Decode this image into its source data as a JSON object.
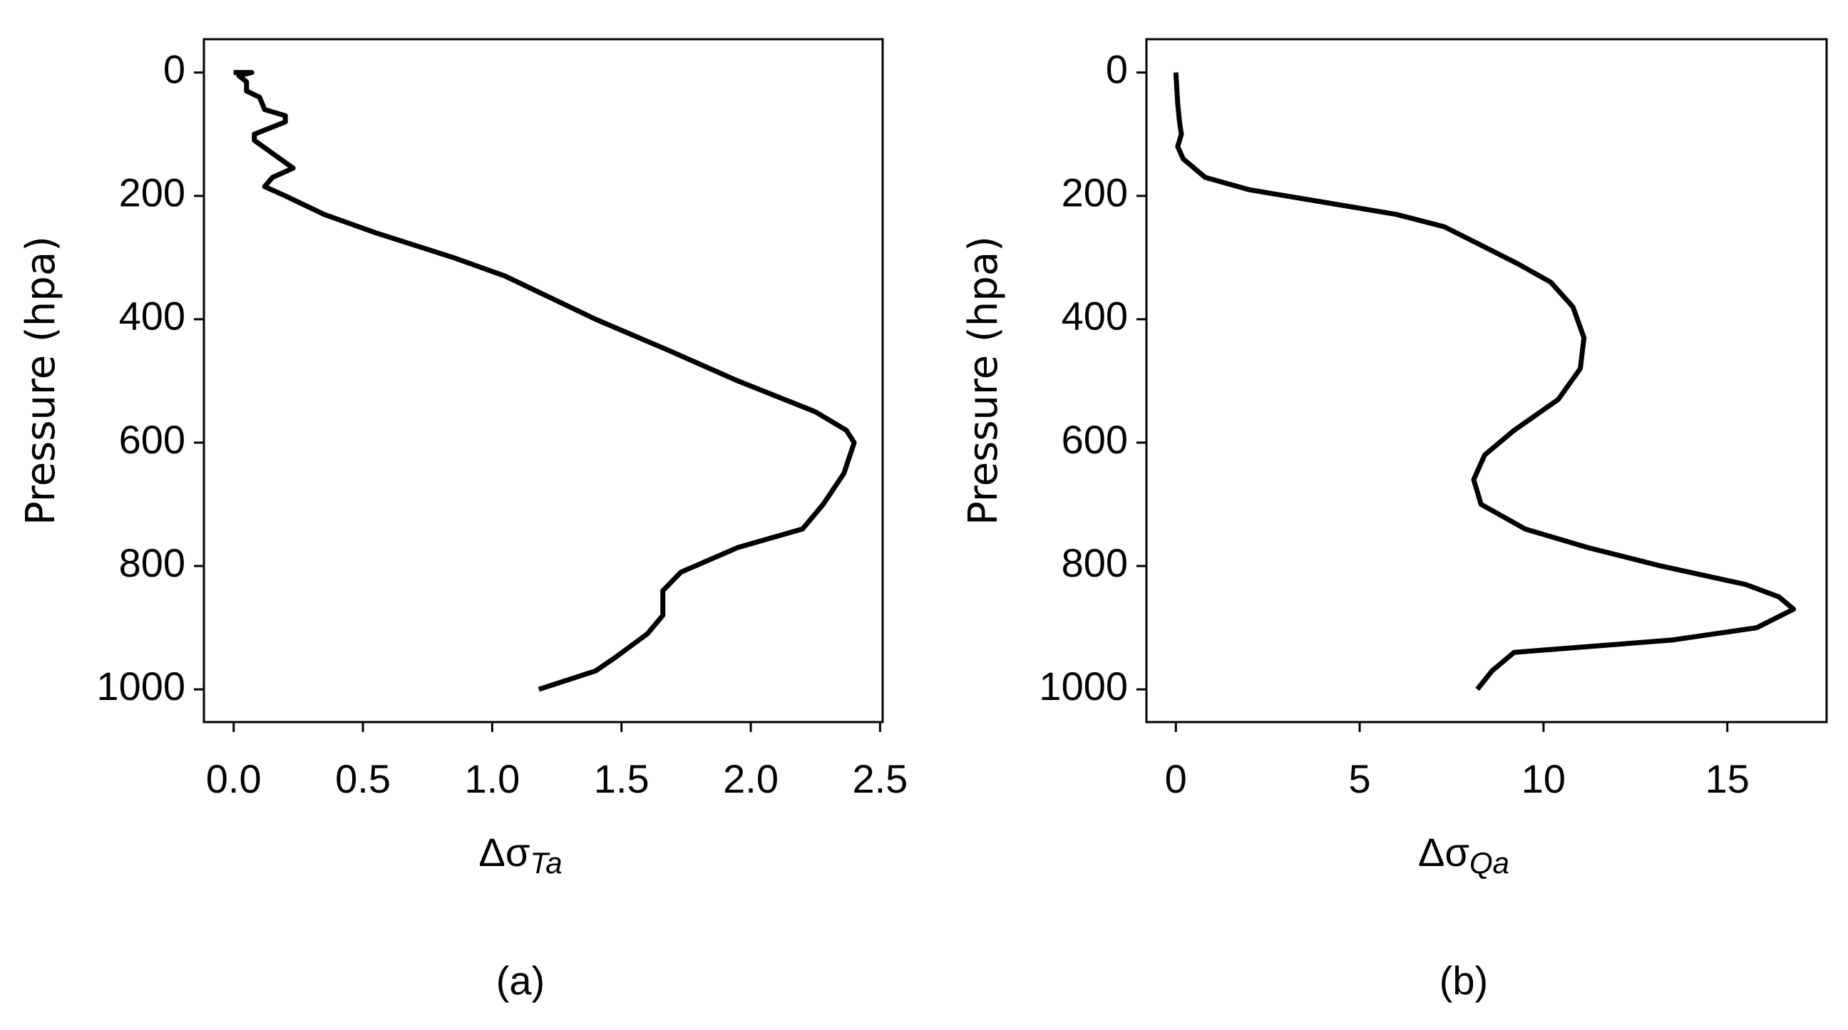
{
  "chart_data": [
    {
      "type": "line",
      "caption": "(a)",
      "ylabel": "Pressure (hpa)",
      "xlabel": "Δσ",
      "xlabel_sub": "Ta",
      "xlim": [
        -0.115,
        2.51
      ],
      "ylim": [
        1053,
        -54
      ],
      "xticks": [
        {
          "value": 0,
          "label": "0.0"
        },
        0.5,
        {
          "value": 1,
          "label": "1.0"
        },
        1.5,
        {
          "value": 2,
          "label": "2.0"
        },
        2.5
      ],
      "yticks": [
        0,
        200,
        400,
        600,
        800,
        1000
      ],
      "color": "#000000",
      "x": [
        0.0,
        0.07,
        0.02,
        0.05,
        0.05,
        0.1,
        0.12,
        0.2,
        0.2,
        0.08,
        0.08,
        0.18,
        0.23,
        0.15,
        0.12,
        0.2,
        0.35,
        0.55,
        0.85,
        1.05,
        1.4,
        1.68,
        1.95,
        2.25,
        2.37,
        2.4,
        2.36,
        2.28,
        2.2,
        1.95,
        1.73,
        1.66,
        1.66,
        1.6,
        1.47,
        1.4,
        1.18
      ],
      "values": [
        0,
        0,
        5,
        15,
        30,
        40,
        60,
        70,
        80,
        100,
        110,
        140,
        155,
        170,
        185,
        200,
        230,
        260,
        300,
        330,
        400,
        450,
        500,
        550,
        580,
        600,
        650,
        700,
        740,
        770,
        810,
        840,
        880,
        910,
        950,
        970,
        1000
      ]
    },
    {
      "type": "line",
      "caption": "(b)",
      "ylabel": "Pressure (hpa)",
      "xlabel": "Δσ",
      "xlabel_sub": "Qa",
      "xlim": [
        -0.8,
        17.7
      ],
      "ylim": [
        1053,
        -54
      ],
      "xticks": [
        0,
        5,
        10,
        15
      ],
      "yticks": [
        0,
        200,
        400,
        600,
        800,
        1000
      ],
      "color": "#000000",
      "x": [
        0.0,
        0.05,
        0.1,
        0.15,
        0.05,
        0.2,
        0.8,
        2,
        4,
        6,
        7.3,
        8.3,
        9.3,
        10.2,
        10.8,
        11.1,
        11.0,
        10.4,
        9.2,
        8.4,
        8.1,
        8.3,
        9.5,
        11.2,
        13.2,
        15.5,
        16.4,
        16.8,
        15.8,
        13.5,
        9.2,
        8.6,
        8.2
      ],
      "values": [
        0,
        50,
        80,
        100,
        120,
        140,
        170,
        190,
        210,
        230,
        250,
        280,
        310,
        340,
        380,
        430,
        480,
        530,
        580,
        620,
        660,
        700,
        740,
        770,
        800,
        830,
        850,
        870,
        900,
        920,
        940,
        970,
        1000
      ]
    }
  ]
}
